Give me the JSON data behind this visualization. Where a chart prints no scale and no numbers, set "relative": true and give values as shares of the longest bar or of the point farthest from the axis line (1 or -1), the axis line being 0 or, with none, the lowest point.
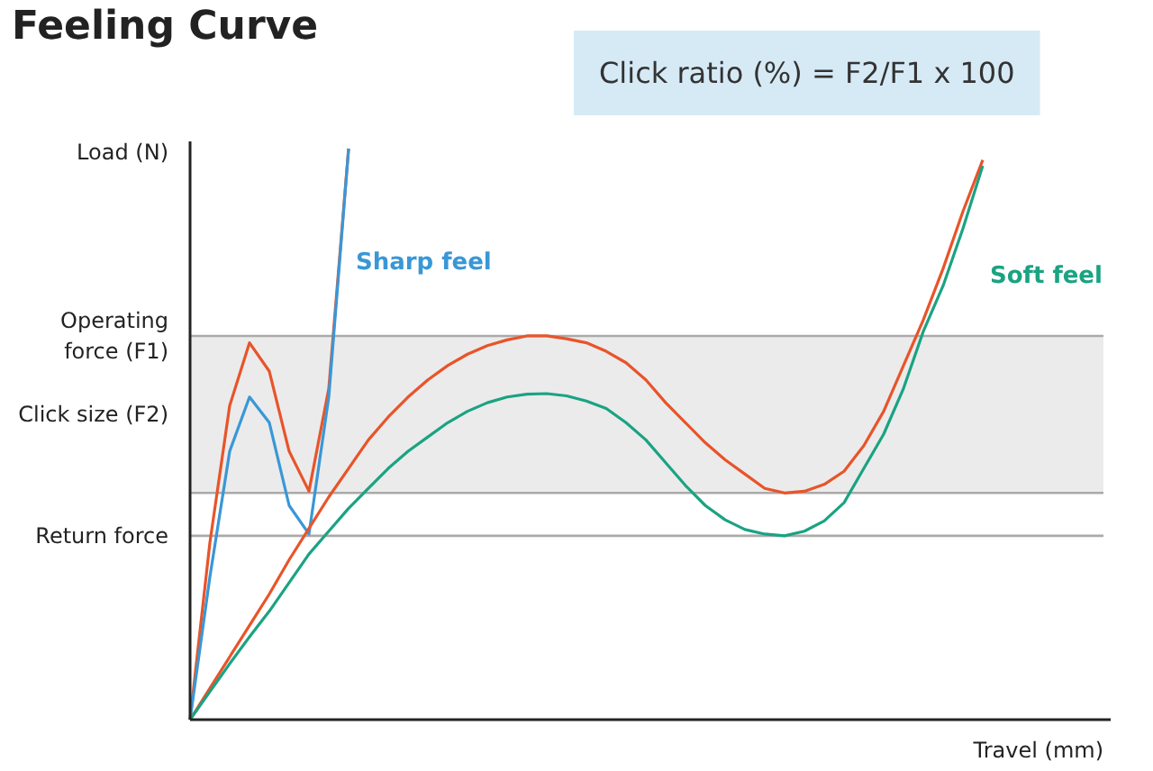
{
  "chart_data": {
    "type": "line",
    "title": "Feeling Curve",
    "xlabel": "Travel (mm)",
    "ylabel": "Load (N)",
    "relative": true,
    "marker": "none",
    "line_style": "solid",
    "annotations": [
      "Click ratio (%) = F2/F1 x 100"
    ],
    "categories": [
      null,
      null,
      null,
      null,
      null,
      null,
      null,
      null,
      null,
      null,
      null,
      null,
      null,
      null,
      null,
      null,
      null,
      null,
      null,
      null,
      null,
      null,
      null,
      null,
      null,
      null,
      null,
      null,
      null,
      null,
      null,
      null,
      null,
      null,
      null,
      null,
      null,
      null,
      null,
      null,
      null
    ],
    "bands": [
      {
        "axis": "y",
        "from": 0.397,
        "to": 0.672,
        "label": "Click size (F2)",
        "color": "#ebebeb"
      }
    ],
    "ref_lines": [
      {
        "axis": "y",
        "value": 0.672,
        "label": "Operating force (F1)",
        "color": "#aaaaaa"
      },
      {
        "axis": "y",
        "value": 0.397,
        "label": null,
        "color": "#aaaaaa"
      },
      {
        "axis": "y",
        "value": 0.322,
        "label": "Return force",
        "color": "#aaaaaa"
      }
    ],
    "series": [
      {
        "color": "#e8542a",
        "values": [
          0,
          0.31,
          0.55,
          0.66,
          0.61,
          0.47,
          0.4,
          0.58,
          1.0,
          null,
          null,
          null,
          null,
          null,
          null,
          null,
          null,
          null,
          null,
          null,
          null,
          null,
          null,
          null,
          null,
          null,
          null,
          null,
          null,
          null,
          null,
          null,
          null,
          null,
          null,
          null,
          null,
          null,
          null,
          null,
          null
        ]
      },
      {
        "name": "Sharp feel",
        "color": "#3a97d6",
        "values": [
          0,
          0.25,
          0.47,
          0.565,
          0.52,
          0.375,
          0.325,
          0.565,
          1.0,
          null,
          null,
          null,
          null,
          null,
          null,
          null,
          null,
          null,
          null,
          null,
          null,
          null,
          null,
          null,
          null,
          null,
          null,
          null,
          null,
          null,
          null,
          null,
          null,
          null,
          null,
          null,
          null,
          null,
          null,
          null,
          null
        ]
      },
      {
        "color": "#e8542a",
        "values": [
          0,
          0.055,
          0.11,
          0.165,
          0.22,
          0.28,
          0.335,
          0.39,
          0.44,
          0.49,
          0.53,
          0.565,
          0.595,
          0.62,
          0.64,
          0.655,
          0.665,
          0.672,
          0.672,
          0.667,
          0.66,
          0.645,
          0.625,
          0.595,
          0.555,
          0.52,
          0.485,
          0.455,
          0.43,
          0.405,
          0.397,
          0.4,
          0.412,
          0.435,
          0.48,
          0.54,
          0.62,
          0.7,
          0.79,
          0.89,
          0.98
        ]
      },
      {
        "name": "Soft feel",
        "color": "#1aa383",
        "values": [
          0,
          0.049,
          0.098,
          0.145,
          0.19,
          0.24,
          0.29,
          0.33,
          0.37,
          0.405,
          0.44,
          0.47,
          0.495,
          0.52,
          0.54,
          0.555,
          0.565,
          0.57,
          0.571,
          0.567,
          0.558,
          0.545,
          0.52,
          0.49,
          0.45,
          0.41,
          0.375,
          0.35,
          0.333,
          0.325,
          0.322,
          0.33,
          0.348,
          0.38,
          0.44,
          0.5,
          0.58,
          0.68,
          0.76,
          0.86,
          0.97
        ]
      }
    ]
  }
}
